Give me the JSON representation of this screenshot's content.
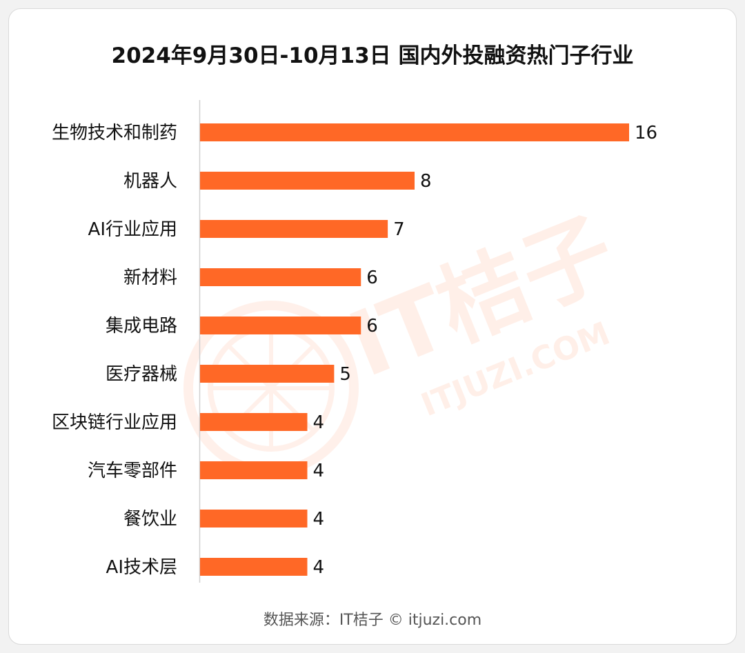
{
  "chart_data": {
    "type": "bar",
    "orientation": "horizontal",
    "title": "2024年9月30日-10月13日 国内外投融资热门子行业",
    "categories": [
      "生物技术和制药",
      "机器人",
      "AI行业应用",
      "新材料",
      "集成电路",
      "医疗器械",
      "区块链行业应用",
      "汽车零部件",
      "餐饮业",
      "AI技术层"
    ],
    "values": [
      16,
      8,
      7,
      6,
      6,
      5,
      4,
      4,
      4,
      4
    ],
    "xlim": [
      0,
      16
    ],
    "grid": false,
    "legend": "none",
    "bar_color": "#ff6826"
  },
  "watermark": {
    "brand": "IT桔子",
    "domain": "ITJUZI.COM"
  },
  "source_text": "数据来源：IT桔子 © itjuzi.com"
}
